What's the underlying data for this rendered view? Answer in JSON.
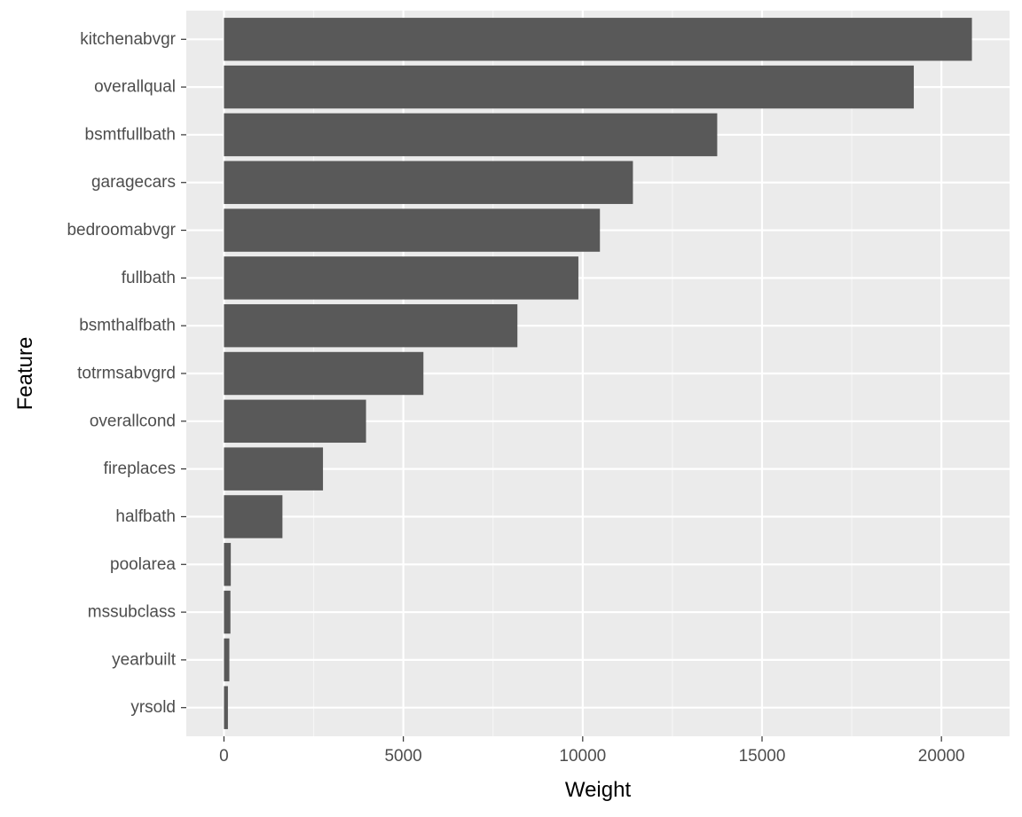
{
  "chart_data": {
    "type": "bar",
    "orientation": "horizontal",
    "xlabel": "Weight",
    "ylabel": "Feature",
    "categories": [
      "kitchenabvgr",
      "overallqual",
      "bsmtfullbath",
      "garagecars",
      "bedroomabvgr",
      "fullbath",
      "bsmthalfbath",
      "totrmsabvgrd",
      "overallcond",
      "fireplaces",
      "halfbath",
      "poolarea",
      "mssubclass",
      "yearbuilt",
      "yrsold"
    ],
    "values": [
      20850,
      19230,
      13750,
      11400,
      10480,
      9880,
      8180,
      5560,
      3960,
      2760,
      1630,
      190,
      180,
      150,
      110
    ],
    "xlim": [
      -1050,
      21900
    ],
    "xticks": [
      0,
      5000,
      10000,
      15000,
      20000
    ],
    "xtick_labels": [
      "0",
      "5000",
      "10000",
      "15000",
      "20000"
    ],
    "grid": true,
    "legend": "none",
    "colors": {
      "bar": "#595959",
      "panel": "#ebebeb",
      "grid_major": "#ffffff",
      "grid_minor": "#f5f5f5",
      "tick": "#333333",
      "tick_label": "#4d4d4d",
      "axis_title": "#000000"
    }
  }
}
